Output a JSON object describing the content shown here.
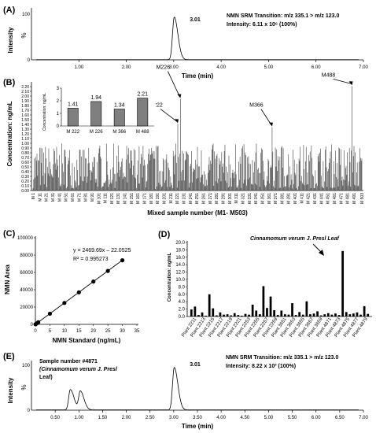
{
  "panel_labels": [
    "(A)",
    "(B)",
    "(C)",
    "(D)",
    "(E)"
  ],
  "chart_data": [
    {
      "type": "line",
      "panel": "(A)",
      "annotation_line1": "NMN SRM Transition: m/z 335.1 > m/z 123.0",
      "annotation_line2": "Intensity: 6.11 x 10⁶ (100%)",
      "peak_label": "3.01",
      "xlabel": "Time (min)",
      "ylabel": "Intensity",
      "ylabel_inner": "%",
      "y_ticks": [
        "100",
        "0"
      ],
      "x_ticks": [
        "1.00",
        "2.00",
        "3.00",
        "4.00",
        "5.00",
        "6.00",
        "7.00"
      ],
      "xlim": [
        0,
        7
      ],
      "ylim": [
        0,
        100
      ],
      "peaks": [
        {
          "center": 3.01,
          "height": 100
        }
      ]
    },
    {
      "type": "bar",
      "panel": "(B)",
      "xlabel": "Mixed sample number (M1- M503)",
      "ylabel": "Concentration: ng/mL",
      "ylim": [
        0,
        2.3
      ],
      "y_ticks": [
        "0.00",
        "0.10",
        "0.20",
        "0.30",
        "0.40",
        "0.50",
        "0.60",
        "0.70",
        "0.80",
        "0.90",
        "1.00",
        "1.10",
        "1.20",
        "1.30",
        "1.40",
        "1.50",
        "1.60",
        "1.70",
        "1.80",
        "1.90",
        "2.00",
        "2.10",
        "2.20"
      ],
      "x_ticks": [
        "M 1",
        "M 11",
        "M 21",
        "M 31",
        "M 41",
        "M 51",
        "M 61",
        "M 71",
        "M 81",
        "M 91",
        "M 101",
        "M 111",
        "M 121",
        "M 131",
        "M 141",
        "M 151",
        "M 161",
        "M 171",
        "M 181",
        "M 191",
        "M 201",
        "M 211",
        "M 221",
        "M 231",
        "M 241",
        "M 251",
        "M 261",
        "M 271",
        "M 281",
        "M 291",
        "M 301",
        "M 311",
        "M 321",
        "M 331",
        "M 341",
        "M 351",
        "M 361",
        "M 371",
        "M 381",
        "M 391",
        "M 401",
        "M 411",
        "M 421",
        "M 431",
        "M 441",
        "M 451",
        "M 461",
        "M 471",
        "M 481",
        "M 491",
        "M 503"
      ],
      "n_samples": 503,
      "highlighted": [
        {
          "label": "M222",
          "index": 222,
          "value": 1.41
        },
        {
          "label": "M226",
          "index": 226,
          "value": 1.94
        },
        {
          "label": "M366",
          "index": 366,
          "value": 1.34
        },
        {
          "label": "M488",
          "index": 488,
          "value": 2.21
        }
      ],
      "typical_range": [
        0.05,
        1.0
      ],
      "inset": {
        "type": "bar",
        "categories": [
          "M 222",
          "M 226",
          "M 366",
          "M 488"
        ],
        "values": [
          1.41,
          1.94,
          1.34,
          2.21
        ],
        "data_labels": [
          "1.41",
          "1.94",
          "1.34",
          "2.21"
        ],
        "ylabel": "Concentration: ng/mL",
        "ylim": [
          0,
          3
        ],
        "y_ticks": [
          "0",
          "1",
          "2",
          "3"
        ]
      }
    },
    {
      "type": "scatter",
      "panel": "(C)",
      "equation": "y = 2469.69x – 22.0525",
      "r2": "R² = 0.995273",
      "xlabel": "NMN Standard (ng/mL)",
      "ylabel": "NMN Area",
      "xlim": [
        0,
        35
      ],
      "ylim": [
        0,
        100000
      ],
      "x_ticks": [
        "0",
        "5",
        "10",
        "15",
        "20",
        "25",
        "30",
        "35"
      ],
      "y_ticks": [
        "0",
        "20000",
        "40000",
        "60000",
        "80000",
        "100000"
      ],
      "points": [
        {
          "x": 0.05,
          "y": 100
        },
        {
          "x": 0.1,
          "y": 250
        },
        {
          "x": 0.5,
          "y": 1200
        },
        {
          "x": 1,
          "y": 2400
        },
        {
          "x": 5,
          "y": 12300
        },
        {
          "x": 10,
          "y": 24700
        },
        {
          "x": 15,
          "y": 37000
        },
        {
          "x": 20,
          "y": 49400
        },
        {
          "x": 25,
          "y": 61700
        },
        {
          "x": 30,
          "y": 74000
        }
      ],
      "fit": {
        "slope": 2469.69,
        "intercept": -22.0525
      }
    },
    {
      "type": "bar",
      "panel": "(D)",
      "annotation": "Cinnamomum verum J. Presl  Leaf",
      "ylabel": "Concentration: ng/mL",
      "ylim": [
        0,
        20
      ],
      "y_ticks": [
        "0.0",
        "2.0",
        "4.0",
        "6.0",
        "8.0",
        "10.0",
        "12.0",
        "14.0",
        "16.0",
        "18.0",
        "20.0"
      ],
      "x_ticks": [
        "Plant 2211",
        "Plant 2213",
        "Plant 2215",
        "Plant 2217",
        "Plant 2219",
        "Plant 2221",
        "Plant 2253",
        "Plant 2255",
        "Plant 2257",
        "Plant 2259",
        "Plant 3651",
        "Plant 3653",
        "Plant 3655",
        "Plant 3657",
        "Plant 3659",
        "Plant 4871",
        "Plant 4873",
        "Plant 4875",
        "Plant 4877",
        "Plant 4879"
      ],
      "values": [
        1.9,
        2.7,
        0.4,
        1.1,
        0.2,
        6.0,
        2.2,
        0.3,
        1.1,
        0.5,
        0.6,
        0.3,
        0.9,
        0.4,
        0.2,
        0.7,
        0.5,
        3.2,
        1.6,
        0.6,
        8.2,
        2.3,
        5.4,
        1.7,
        0.4,
        1.6,
        0.6,
        0.5,
        3.6,
        0.4,
        1.2,
        0.5,
        4.1,
        0.6,
        0.8,
        1.4,
        0.3,
        0.6,
        0.9,
        0.5,
        0.8,
        0.4,
        17.7,
        1.2,
        0.6,
        0.8,
        1.1,
        0.5,
        2.8,
        0.7
      ]
    },
    {
      "type": "line",
      "panel": "(E)",
      "sample_line1": "Sample number #4871",
      "sample_line2": "(Cinnamomum verum J. Presl",
      "sample_line3": "Leaf)",
      "annotation_line1": "NMN SRM Transition: m/z 335.1 > m/z 123.0",
      "annotation_line2": "Intensity: 8.22 x 10³ (100%)",
      "peak_label": "3.01",
      "xlabel": "Time (min)",
      "ylabel": "Intensity",
      "ylabel_inner": "%",
      "y_ticks": [
        "100",
        "0"
      ],
      "x_ticks": [
        "0.50",
        "1.00",
        "1.50",
        "2.00",
        "2.50",
        "3.00",
        "3.50",
        "4.00",
        "4.50",
        "5.00",
        "5.50",
        "6.00",
        "6.50",
        "7.00"
      ],
      "xlim": [
        0,
        7
      ],
      "ylim": [
        0,
        100
      ],
      "peaks": [
        {
          "center": 0.82,
          "height": 48
        },
        {
          "center": 1.03,
          "height": 44
        },
        {
          "center": 3.01,
          "height": 100
        }
      ]
    }
  ]
}
